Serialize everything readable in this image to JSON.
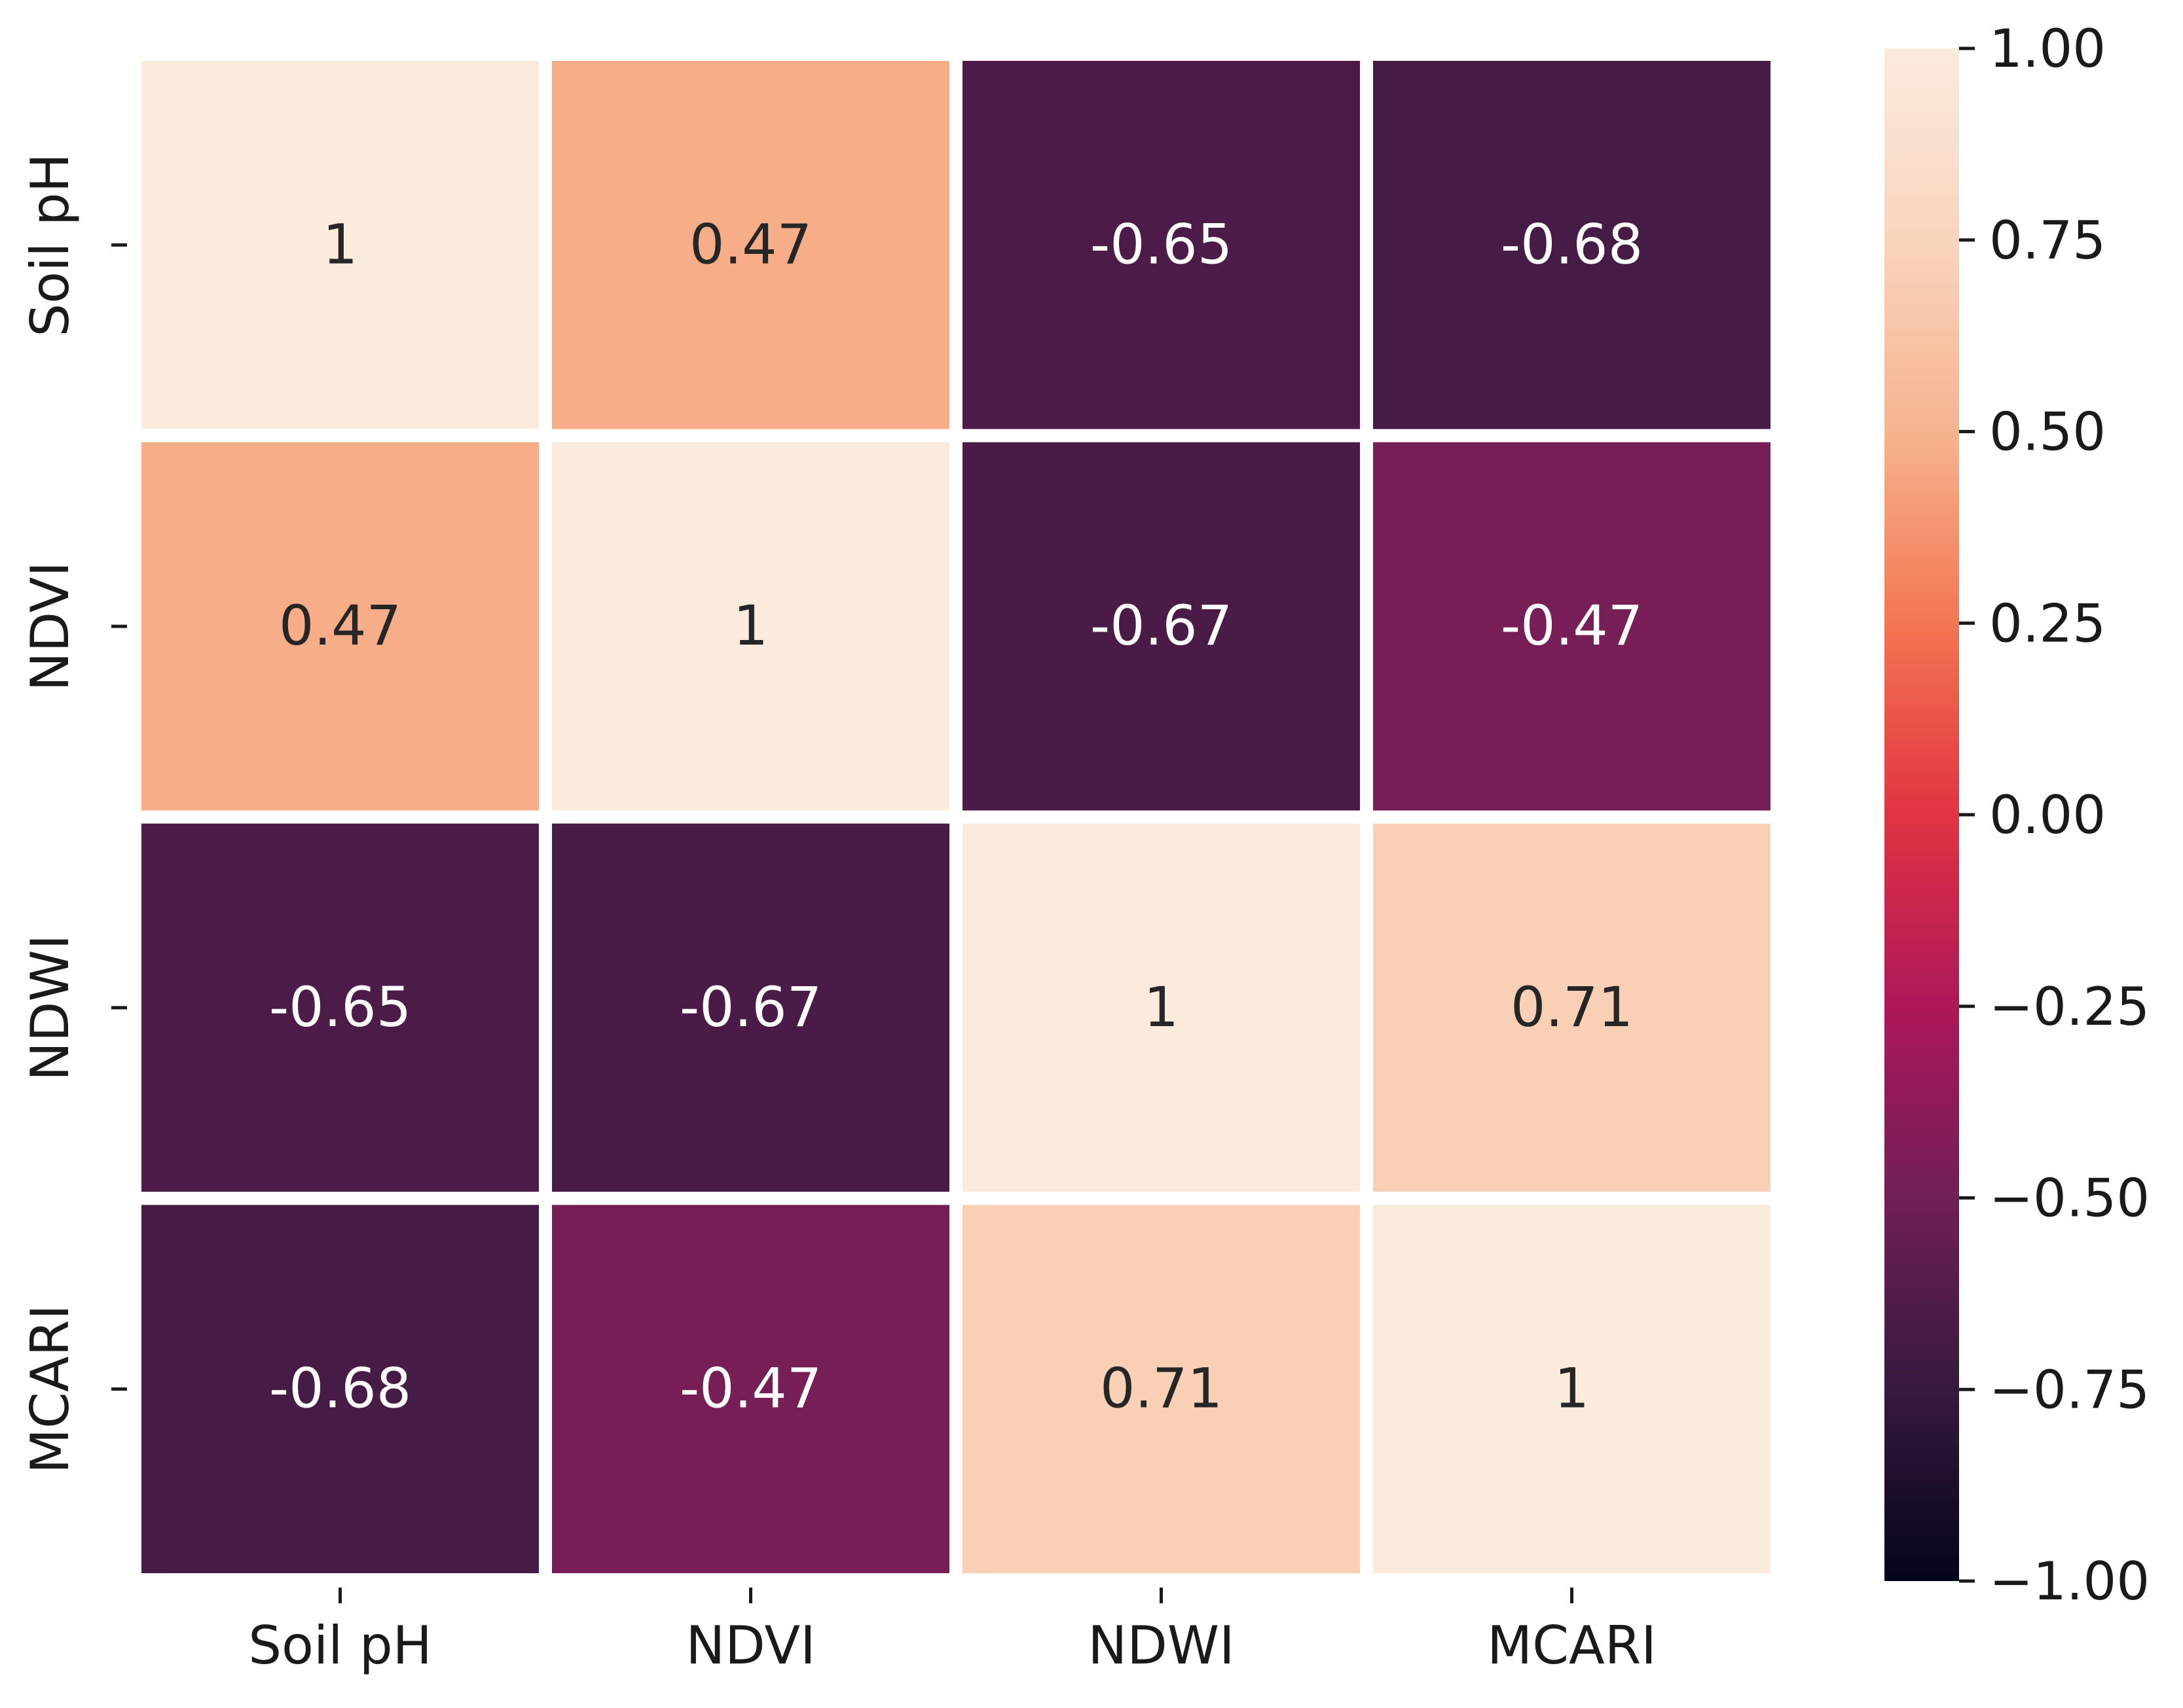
{
  "chart_data": {
    "type": "heatmap",
    "title": "",
    "xlabel": "",
    "ylabel": "",
    "x_categories": [
      "Soil pH",
      "NDVI",
      "NDWI",
      "MCARI"
    ],
    "y_categories": [
      "Soil pH",
      "NDVI",
      "NDWI",
      "MCARI"
    ],
    "values": [
      [
        1,
        0.47,
        -0.65,
        -0.68
      ],
      [
        0.47,
        1,
        -0.67,
        -0.47
      ],
      [
        -0.65,
        -0.67,
        1,
        0.71
      ],
      [
        -0.68,
        -0.47,
        0.71,
        1
      ]
    ],
    "value_labels": [
      [
        "1",
        "0.47",
        "-0.65",
        "-0.68"
      ],
      [
        "0.47",
        "1",
        "-0.67",
        "-0.47"
      ],
      [
        "-0.65",
        "-0.67",
        "1",
        "0.71"
      ],
      [
        "-0.68",
        "-0.47",
        "0.71",
        "1"
      ]
    ],
    "colormap": "rocket",
    "vmin": -1.0,
    "vmax": 1.0,
    "colorbar_ticks": [
      1.0,
      0.75,
      0.5,
      0.25,
      0.0,
      -0.25,
      -0.5,
      -0.75,
      -1.0
    ],
    "colorbar_tick_labels": [
      "1.00",
      "0.75",
      "0.50",
      "0.25",
      "0.00",
      "−0.25",
      "−0.50",
      "−0.75",
      "−1.00"
    ],
    "colorbar_placement": "right",
    "cell_border_color": "#ffffff",
    "colormap_stops": [
      {
        "v": -1.0,
        "color": "#03051a"
      },
      {
        "v": -0.75,
        "color": "#36193e"
      },
      {
        "v": -0.5,
        "color": "#701f57"
      },
      {
        "v": -0.25,
        "color": "#ad1759"
      },
      {
        "v": 0.0,
        "color": "#e13342"
      },
      {
        "v": 0.25,
        "color": "#f37651"
      },
      {
        "v": 0.5,
        "color": "#f6b48f"
      },
      {
        "v": 0.75,
        "color": "#f9d4bd"
      },
      {
        "v": 1.0,
        "color": "#faebdd"
      }
    ]
  }
}
